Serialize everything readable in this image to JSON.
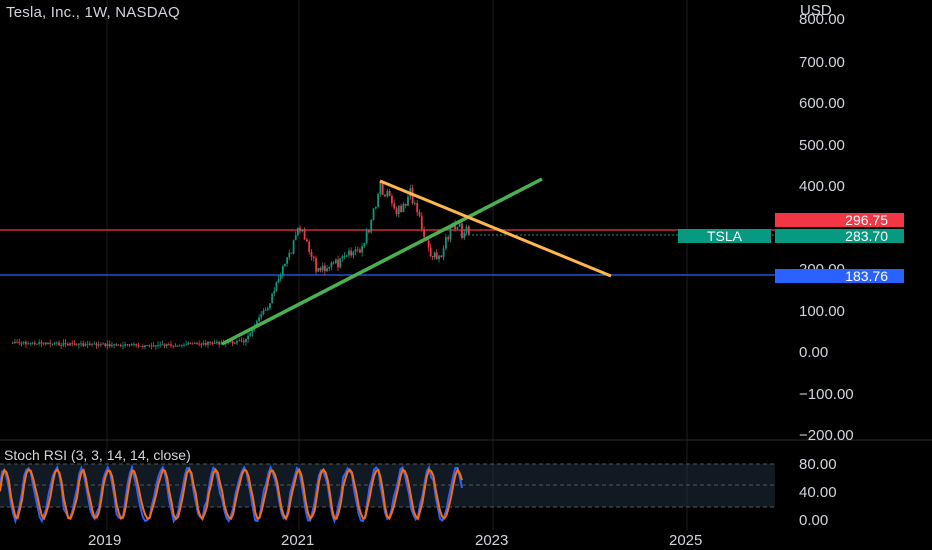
{
  "header": {
    "symbol_title": "Tesla, Inc., 1W, NASDAQ",
    "currency": "USD"
  },
  "price_axis": {
    "ticks": [
      "700.00",
      "600.00",
      "500.00",
      "400.00",
      "100.00",
      "0.00",
      "−100.00",
      "−200.00"
    ],
    "partial_top_tick": "800.00",
    "partial_200_tick": "200.00"
  },
  "labels": {
    "resistance": {
      "value": "296.75",
      "color": "#f23645"
    },
    "last_price": {
      "symbol": "TSLA",
      "value": "283.70",
      "color": "#089981"
    },
    "support": {
      "value": "183.76",
      "color": "#2962ff"
    }
  },
  "indicator": {
    "title": "Stoch RSI (3, 3, 14, 14, close)",
    "ticks": [
      "80.00",
      "40.00",
      "0.00"
    ],
    "k_color": "#2962ff",
    "d_color": "#ff6d00"
  },
  "time_axis": {
    "labels": [
      "2019",
      "2021",
      "2023",
      "2025"
    ]
  },
  "chart_data": {
    "type": "line",
    "title": "Tesla, Inc., 1W, NASDAQ",
    "xlabel": "",
    "ylabel": "USD",
    "ylim": [
      -200,
      800
    ],
    "series": [
      {
        "name": "TSLA",
        "x": [
          "2018-01",
          "2019-06",
          "2020-01",
          "2020-06",
          "2020-09",
          "2021-01",
          "2021-03",
          "2021-06",
          "2021-09",
          "2021-11",
          "2022-01",
          "2022-03",
          "2022-05",
          "2022-06",
          "2022-08",
          "2022-10"
        ],
        "values": [
          22,
          15,
          20,
          25,
          110,
          295,
          200,
          215,
          260,
          410,
          350,
          380,
          250,
          220,
          300,
          284
        ]
      }
    ],
    "horizontal_levels": [
      296.75,
      183.76
    ],
    "trendlines": [
      {
        "color": "#4caf50",
        "from": [
          "2020-03",
          20
        ],
        "to": [
          "2023-06",
          420
        ]
      },
      {
        "color": "#ffb74d",
        "from": [
          "2021-11",
          415
        ],
        "to": [
          "2024-06",
          185
        ]
      }
    ],
    "stoch_rsi_ylim": [
      0,
      100
    ]
  }
}
